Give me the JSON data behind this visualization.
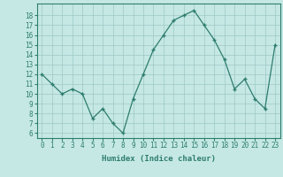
{
  "x": [
    0,
    1,
    2,
    3,
    4,
    5,
    6,
    7,
    8,
    9,
    10,
    11,
    12,
    13,
    14,
    15,
    16,
    17,
    18,
    19,
    20,
    21,
    22,
    23
  ],
  "y": [
    12,
    11,
    10,
    10.5,
    10,
    7.5,
    8.5,
    7,
    6,
    9.5,
    12,
    14.5,
    16,
    17.5,
    18,
    18.5,
    17,
    15.5,
    13.5,
    10.5,
    11.5,
    9.5,
    8.5,
    15
  ],
  "line_color": "#2e7d6e",
  "marker": "+",
  "marker_size": 3.5,
  "bg_color": "#c5e8e5",
  "grid_color": "#9dc8c4",
  "xlabel": "Humidex (Indice chaleur)",
  "ylabel_ticks": [
    6,
    7,
    8,
    9,
    10,
    11,
    12,
    13,
    14,
    15,
    16,
    17,
    18
  ],
  "ylim": [
    5.5,
    19.2
  ],
  "xlim": [
    -0.5,
    23.5
  ],
  "tick_color": "#2e7d6e",
  "label_color": "#2e7d6e",
  "tick_fontsize": 5.5,
  "xlabel_fontsize": 6.5
}
